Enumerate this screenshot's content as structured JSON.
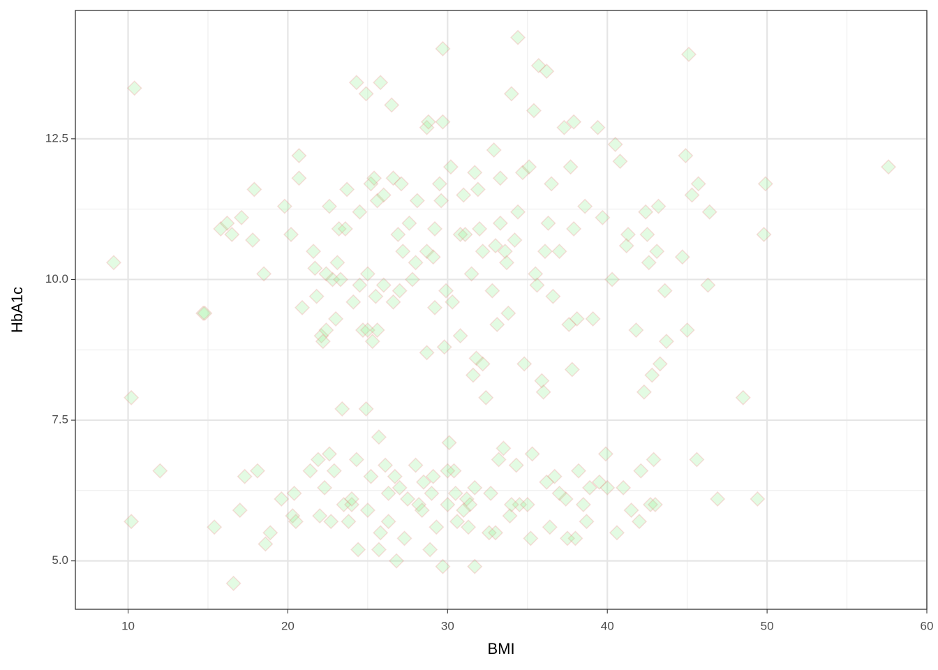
{
  "chart_data": {
    "type": "scatter",
    "x_label": "BMI",
    "y_label": "HbA1c",
    "xlim": [
      6.7,
      60
    ],
    "ylim": [
      4.14,
      14.78
    ],
    "xticks": [
      10,
      20,
      30,
      40,
      50,
      60
    ],
    "yticks": [
      {
        "value": 5,
        "label": "5.0"
      },
      7.5,
      {
        "value": 10,
        "label": "10.0"
      },
      12.5
    ],
    "grid": true,
    "minor_grid": true,
    "marker": "diamond",
    "color": "#90ee90",
    "edge_color": "#f08080",
    "alpha": 0.25,
    "x": [
      9.1,
      10.4,
      10.2,
      10.2,
      12.0,
      14.7,
      14.8,
      15.4,
      15.8,
      16.2,
      16.5,
      16.6,
      17.0,
      17.1,
      17.3,
      17.8,
      17.9,
      18.1,
      18.5,
      18.6,
      18.9,
      19.6,
      19.8,
      20.2,
      20.3,
      20.4,
      20.5,
      20.7,
      20.7,
      20.9,
      21.4,
      21.6,
      21.7,
      21.8,
      21.9,
      22.0,
      22.1,
      22.2,
      22.3,
      22.4,
      22.4,
      22.6,
      22.6,
      22.7,
      22.8,
      23.0,
      23.1,
      23.2,
      23.3,
      23.4,
      23.5,
      23.6,
      23.7,
      23.8,
      24.0,
      24.1,
      24.3,
      24.3,
      24.4,
      24.5,
      24.5,
      24.7,
      24.9,
      24.9,
      25.0,
      25.0,
      25.2,
      25.2,
      25.3,
      25.4,
      25.5,
      25.6,
      25.6,
      25.7,
      25.7,
      25.8,
      25.8,
      26.0,
      26.0,
      26.1,
      26.3,
      26.3,
      26.5,
      26.6,
      26.6,
      26.7,
      26.8,
      26.9,
      27.0,
      27.1,
      27.2,
      27.3,
      27.5,
      27.6,
      27.8,
      28.0,
      28.0,
      28.1,
      28.2,
      28.5,
      28.7,
      28.7,
      28.7,
      28.8,
      28.9,
      29.1,
      29.1,
      29.2,
      29.2,
      29.3,
      29.5,
      29.6,
      29.7,
      29.7,
      29.7,
      29.8,
      29.9,
      30.0,
      30.1,
      30.2,
      30.3,
      30.4,
      30.6,
      30.8,
      30.8,
      31.0,
      31.1,
      31.2,
      31.3,
      31.4,
      31.5,
      31.6,
      31.7,
      31.7,
      31.8,
      31.9,
      32.0,
      32.2,
      32.2,
      32.4,
      32.6,
      32.8,
      32.9,
      33.0,
      33.1,
      33.2,
      33.3,
      33.3,
      33.5,
      33.6,
      33.7,
      33.8,
      33.9,
      34.0,
      34.2,
      34.3,
      34.4,
      34.4,
      34.7,
      34.8,
      35.1,
      35.2,
      35.3,
      35.4,
      35.5,
      35.6,
      35.7,
      35.9,
      36.0,
      36.1,
      36.2,
      36.3,
      36.4,
      36.5,
      36.6,
      36.7,
      37.0,
      37.3,
      37.4,
      37.5,
      37.6,
      37.7,
      37.8,
      37.9,
      37.9,
      38.0,
      38.1,
      38.2,
      38.6,
      38.7,
      38.9,
      39.1,
      39.4,
      39.5,
      39.7,
      39.9,
      40.3,
      40.5,
      40.6,
      40.8,
      41.0,
      41.2,
      41.3,
      41.8,
      42.0,
      42.1,
      42.3,
      42.4,
      42.5,
      42.6,
      42.8,
      42.9,
      43.1,
      43.2,
      43.3,
      43.6,
      43.7,
      44.7,
      44.9,
      45.0,
      45.1,
      45.3,
      45.6,
      45.7,
      46.3,
      46.4,
      46.9,
      48.5,
      49.4,
      49.8,
      49.9,
      57.6,
      30.5,
      31.0,
      29.0,
      28.4,
      27.0,
      32.7,
      34.5,
      36.2,
      37.0,
      33.0,
      25.0,
      22.9,
      24.0,
      30.0,
      31.7,
      34.0,
      35.0,
      38.5,
      40.0,
      41.5,
      42.7,
      43.0
    ],
    "values": [
      10.3,
      13.4,
      7.9,
      5.7,
      6.6,
      9.4,
      9.4,
      5.6,
      10.9,
      11.0,
      10.8,
      4.6,
      5.9,
      11.1,
      6.5,
      10.7,
      11.6,
      6.6,
      10.1,
      5.3,
      5.5,
      6.1,
      11.3,
      10.8,
      5.8,
      6.2,
      5.7,
      12.2,
      11.8,
      9.5,
      6.6,
      10.5,
      10.2,
      9.7,
      6.8,
      5.8,
      9.0,
      8.9,
      6.3,
      9.1,
      10.1,
      11.3,
      6.9,
      5.7,
      10.0,
      9.3,
      10.3,
      10.9,
      10.0,
      7.7,
      6.0,
      10.9,
      11.6,
      5.7,
      6.0,
      9.6,
      6.8,
      13.5,
      5.2,
      9.9,
      11.2,
      9.1,
      13.3,
      7.7,
      10.1,
      9.1,
      11.7,
      6.5,
      8.9,
      11.8,
      9.7,
      9.1,
      11.4,
      5.2,
      7.2,
      13.5,
      5.5,
      9.9,
      11.5,
      6.7,
      6.2,
      5.7,
      13.1,
      11.8,
      9.6,
      6.5,
      5.0,
      10.8,
      9.8,
      11.7,
      10.5,
      5.4,
      6.1,
      11.0,
      10.0,
      10.3,
      6.7,
      11.4,
      6.0,
      6.4,
      8.7,
      10.5,
      12.7,
      12.8,
      5.2,
      10.4,
      6.5,
      9.5,
      10.9,
      5.6,
      11.7,
      11.4,
      14.1,
      12.8,
      4.9,
      8.8,
      9.8,
      6.0,
      7.1,
      12.0,
      9.6,
      6.6,
      5.7,
      10.8,
      9.0,
      11.5,
      10.8,
      6.1,
      5.6,
      6.0,
      10.1,
      8.3,
      11.9,
      4.9,
      8.6,
      11.6,
      10.9,
      10.5,
      8.5,
      7.9,
      5.5,
      9.8,
      12.3,
      10.6,
      9.2,
      6.8,
      11.8,
      11.0,
      7.0,
      10.5,
      10.3,
      9.4,
      5.8,
      13.3,
      10.7,
      6.7,
      14.3,
      11.2,
      11.9,
      8.5,
      12.0,
      5.4,
      6.9,
      13.0,
      10.1,
      9.9,
      13.8,
      8.2,
      8.0,
      10.5,
      13.7,
      11.0,
      5.6,
      11.7,
      9.7,
      6.5,
      10.5,
      12.7,
      6.1,
      5.4,
      9.2,
      12.0,
      8.4,
      12.8,
      10.9,
      5.4,
      9.3,
      6.6,
      11.3,
      5.7,
      6.3,
      9.3,
      12.7,
      6.4,
      11.1,
      6.9,
      10.0,
      12.4,
      5.5,
      12.1,
      6.3,
      10.6,
      10.8,
      9.1,
      5.7,
      6.6,
      8.0,
      11.2,
      10.8,
      10.3,
      8.3,
      6.8,
      10.5,
      11.3,
      8.5,
      9.8,
      8.9,
      10.4,
      12.2,
      9.1,
      14.0,
      11.5,
      6.8,
      11.7,
      9.9,
      11.2,
      6.1,
      7.9,
      6.1,
      10.8,
      11.7,
      12.0,
      6.2,
      5.9,
      6.2,
      5.9,
      6.3,
      6.2,
      6.0,
      6.4,
      6.2,
      5.5,
      5.9,
      6.6,
      6.1,
      6.6,
      6.3,
      6.0,
      6.0,
      6.0,
      6.3,
      5.9,
      6.0,
      6.0
    ]
  }
}
